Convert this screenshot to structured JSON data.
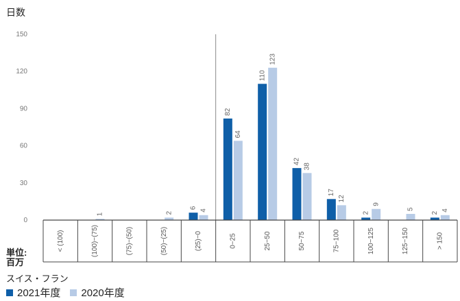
{
  "chart_data": {
    "type": "bar",
    "ylabel": "日数",
    "ylim": [
      0,
      150
    ],
    "yticks": [
      0,
      30,
      60,
      90,
      120,
      150
    ],
    "categories": [
      "< (100)",
      "(100)−(75)",
      "(75)−(50)",
      "(50)−(25)",
      "(25)−0",
      "0−25",
      "25−50",
      "50−75",
      "75−100",
      "100−125",
      "125−150",
      "> 150"
    ],
    "series": [
      {
        "name": "2021年度",
        "color": "#0f5fa8",
        "values": [
          0,
          0,
          0,
          0,
          6,
          82,
          110,
          42,
          17,
          2,
          0,
          2
        ],
        "labels": [
          "",
          "",
          "",
          "",
          "6",
          "82",
          "110",
          "42",
          "17",
          "2",
          "",
          "2"
        ]
      },
      {
        "name": "2020年度",
        "color": "#b7cbe6",
        "values": [
          0,
          1,
          0,
          2,
          4,
          64,
          123,
          38,
          12,
          9,
          5,
          4
        ],
        "labels": [
          "",
          "1",
          "",
          "2",
          "4",
          "64",
          "123",
          "38",
          "12",
          "9",
          "5",
          "4"
        ]
      }
    ],
    "grid": false,
    "legend_position": "bottom-left"
  },
  "unit_label": "単位:\n百万",
  "currency_label": "スイス・フラン"
}
